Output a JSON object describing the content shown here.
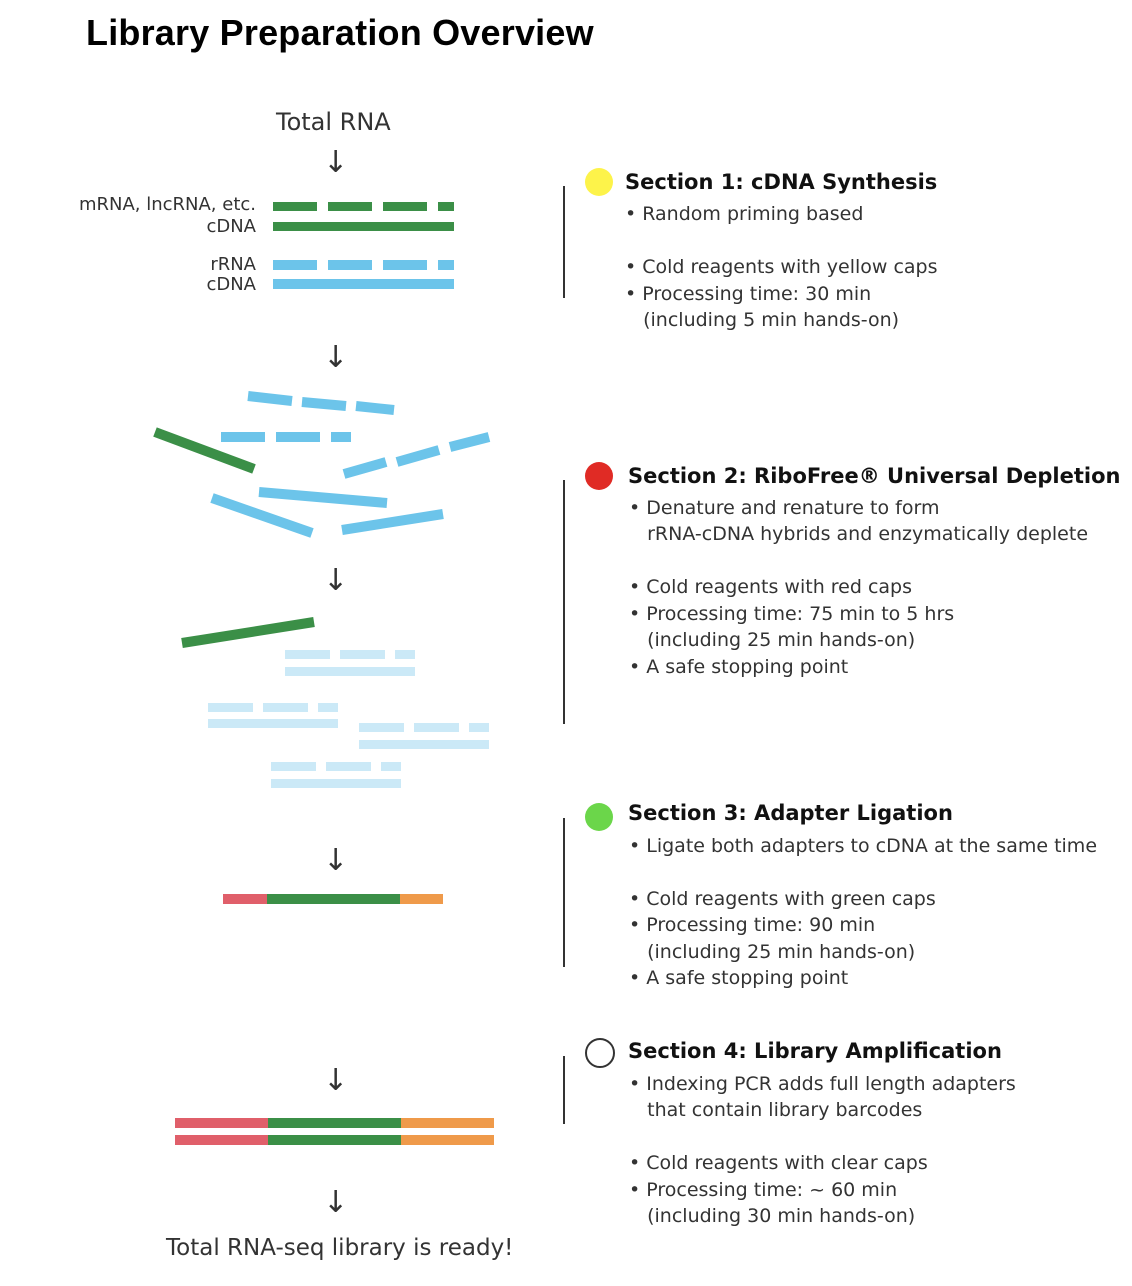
{
  "title": "Library Preparation Overview",
  "colors": {
    "green": "#3b8f47",
    "blue": "#6cc4ea",
    "light_blue": "#cbe9f7",
    "red": "#e05f6a",
    "orange": "#ef9a4a",
    "dot_yellow": "#fdf34a",
    "dot_red": "#e02b25",
    "dot_green": "#6bd64a"
  },
  "flow": {
    "start_label": "Total RNA",
    "strand_labels": {
      "mrna": "mRNA, lncRNA, etc.",
      "cdna_1": "cDNA",
      "rrna": "rRNA",
      "cdna_2": "cDNA"
    },
    "end_label": "Total RNA-seq library is ready!",
    "arrow_glyph": "↓"
  },
  "sections": [
    {
      "title": "Section 1: cDNA Synthesis",
      "dot": "yellow",
      "bullets": [
        "• Random priming based",
        "",
        "• Cold reagents with yellow caps",
        "• Processing time: 30 min",
        "   (including 5 min hands-on)"
      ]
    },
    {
      "title": "Section 2: RiboFree® Universal Depletion",
      "dot": "red",
      "bullets": [
        "• Denature and renature to form",
        "   rRNA-cDNA hybrids and enzymatically deplete",
        "",
        "• Cold reagents with red caps",
        "• Processing time: 75 min to 5 hrs",
        "   (including 25 min hands-on)",
        "• A safe stopping point"
      ]
    },
    {
      "title": "Section 3: Adapter Ligation",
      "dot": "green",
      "bullets": [
        "• Ligate both adapters to cDNA at the same time",
        "",
        "• Cold reagents with green caps",
        "• Processing time: 90 min",
        "   (including 25 min hands-on)",
        "• A safe stopping point"
      ]
    },
    {
      "title": "Section 4: Library Amplification",
      "dot": "clear",
      "bullets": [
        "• Indexing PCR adds full length adapters",
        "   that contain library barcodes",
        "",
        "• Cold reagents with clear caps",
        "• Processing time: ~ 60 min",
        "   (including 30 min hands-on)"
      ]
    }
  ]
}
